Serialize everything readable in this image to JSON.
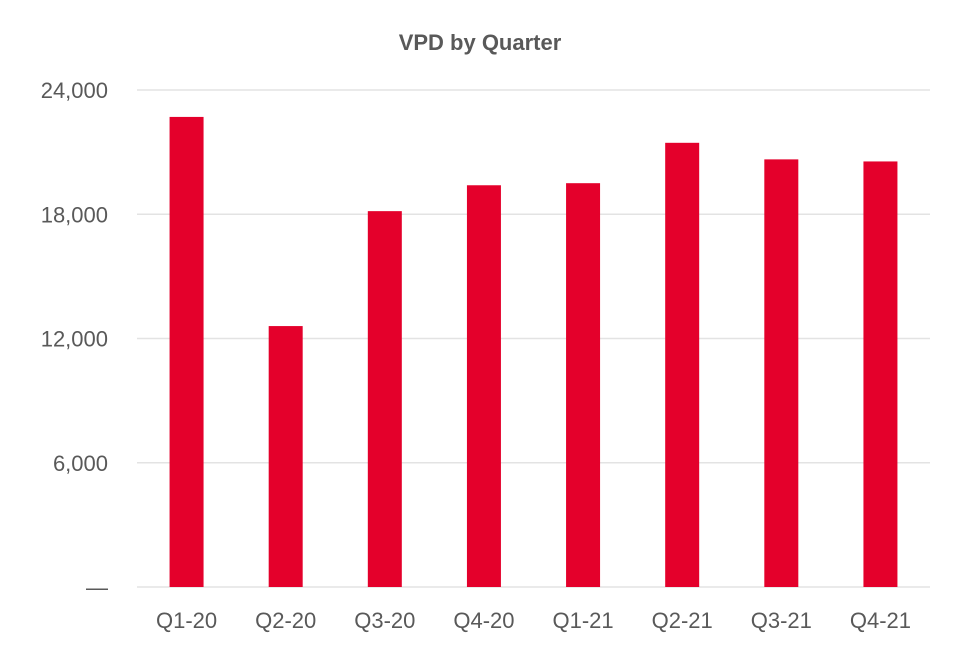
{
  "chart_data": {
    "type": "bar",
    "title": "VPD by Quarter",
    "xlabel": "",
    "ylabel": "",
    "categories": [
      "Q1-20",
      "Q2-20",
      "Q3-20",
      "Q4-20",
      "Q1-21",
      "Q2-21",
      "Q3-21",
      "Q4-21"
    ],
    "values": [
      22700,
      12600,
      18150,
      19400,
      19500,
      21450,
      20650,
      20550
    ],
    "ylim": [
      0,
      24000
    ],
    "yticks": [
      0,
      6000,
      12000,
      18000,
      24000
    ],
    "ytick_labels": [
      "—",
      "6,000",
      "12,000",
      "18,000",
      "24,000"
    ],
    "grid": true,
    "legend": "none",
    "bar_color": "#e4002b"
  }
}
